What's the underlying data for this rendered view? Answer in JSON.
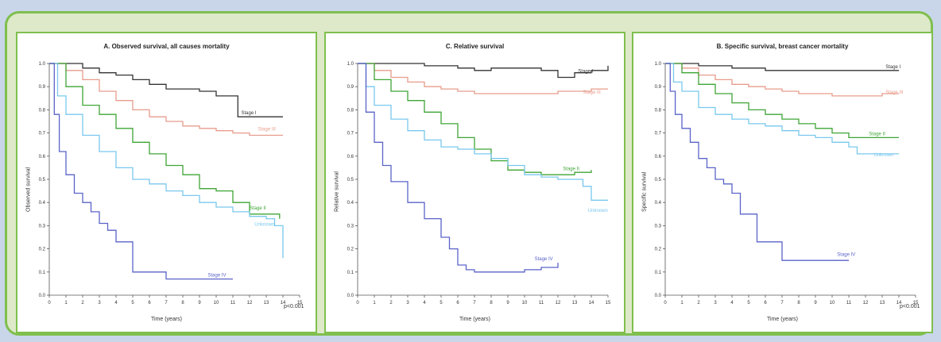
{
  "colors": {
    "stage_i": "#333333",
    "stage_ii": "#3fa535",
    "stage_iii": "#e89c8c",
    "stage_iv": "#5a63c8",
    "unknown": "#79c8ee"
  },
  "chart_data": [
    {
      "type": "line",
      "title": "A. Observed survival, all causes mortality",
      "xlabel": "Time (years)",
      "ylabel": "Observed survival",
      "xlim": [
        0,
        15
      ],
      "ylim": [
        0,
        1
      ],
      "xticks": [
        "0",
        "1",
        "2",
        "3",
        "4",
        "5",
        "6",
        "7",
        "8",
        "9",
        "10",
        "11",
        "12",
        "13",
        "14",
        "15"
      ],
      "yticks": [
        "0.0",
        "0.1",
        "0.2",
        "0.3",
        "0.4",
        "0.5",
        "0.6",
        "0.7",
        "0.8",
        "0.9",
        "1.0"
      ],
      "annotation": "p<0.001",
      "series": [
        {
          "name": "Stage I",
          "color_key": "stage_i",
          "label_at": [
            11.5,
            0.78
          ],
          "x": [
            0,
            1,
            2,
            3,
            4,
            5,
            6,
            7,
            8,
            9,
            10,
            11,
            11.3,
            12,
            13,
            14
          ],
          "y": [
            1.0,
            1.0,
            0.98,
            0.96,
            0.95,
            0.93,
            0.91,
            0.89,
            0.89,
            0.88,
            0.86,
            0.86,
            0.77,
            0.77,
            0.77,
            0.77
          ]
        },
        {
          "name": "Stage III",
          "color_key": "stage_iii",
          "label_at": [
            12.5,
            0.71
          ],
          "x": [
            0,
            1,
            2,
            3,
            4,
            5,
            6,
            7,
            8,
            9,
            10,
            11,
            12,
            13,
            14
          ],
          "y": [
            1.0,
            0.97,
            0.93,
            0.88,
            0.84,
            0.8,
            0.77,
            0.75,
            0.73,
            0.72,
            0.71,
            0.7,
            0.69,
            0.69,
            0.69
          ]
        },
        {
          "name": "Stage II",
          "color_key": "stage_ii",
          "label_at": [
            12,
            0.37
          ],
          "x": [
            0,
            1,
            2,
            3,
            4,
            5,
            6,
            7,
            8,
            9,
            10,
            11,
            12,
            13,
            13.8
          ],
          "y": [
            1.0,
            0.9,
            0.82,
            0.78,
            0.72,
            0.66,
            0.61,
            0.56,
            0.52,
            0.46,
            0.45,
            0.4,
            0.35,
            0.35,
            0.33
          ]
        },
        {
          "name": "Unknown",
          "color_key": "unknown",
          "label_at": [
            12.3,
            0.3
          ],
          "x": [
            0,
            0.5,
            1,
            2,
            3,
            4,
            5,
            6,
            7,
            8,
            9,
            10,
            11,
            12,
            13,
            13.5,
            14
          ],
          "y": [
            1.0,
            0.86,
            0.78,
            0.69,
            0.62,
            0.55,
            0.5,
            0.48,
            0.45,
            0.43,
            0.4,
            0.38,
            0.36,
            0.34,
            0.33,
            0.3,
            0.16
          ]
        },
        {
          "name": "Stage IV",
          "color_key": "stage_iv",
          "label_at": [
            9.5,
            0.08
          ],
          "x": [
            0,
            0.3,
            0.6,
            1,
            1.5,
            2,
            2.5,
            3,
            3.5,
            4,
            4.5,
            5,
            5.5,
            6,
            7,
            8,
            9,
            10,
            11
          ],
          "y": [
            1.0,
            0.78,
            0.62,
            0.52,
            0.44,
            0.4,
            0.36,
            0.31,
            0.28,
            0.23,
            0.23,
            0.1,
            0.1,
            0.1,
            0.07,
            0.07,
            0.07,
            0.07,
            0.07
          ]
        }
      ]
    },
    {
      "type": "line",
      "title": "C. Relative survival",
      "xlabel": "Time (years)",
      "ylabel": "Relative survival",
      "xlim": [
        0,
        15
      ],
      "ylim": [
        0,
        1
      ],
      "xticks": [
        "0",
        "1",
        "2",
        "3",
        "4",
        "5",
        "6",
        "7",
        "8",
        "9",
        "10",
        "11",
        "12",
        "13",
        "14",
        "15"
      ],
      "yticks": [
        "0.0",
        "0.1",
        "0.2",
        "0.3",
        "0.4",
        "0.5",
        "0.6",
        "0.7",
        "0.8",
        "0.9",
        "1.0"
      ],
      "annotation": "",
      "series": [
        {
          "name": "Stage I",
          "color_key": "stage_i",
          "label_at": [
            13.2,
            0.96
          ],
          "x": [
            0,
            2,
            4,
            6,
            7,
            8,
            10,
            11,
            12,
            13,
            14,
            15
          ],
          "y": [
            1.0,
            1.0,
            0.99,
            0.98,
            0.97,
            0.98,
            0.98,
            0.97,
            0.94,
            0.96,
            0.97,
            0.99
          ]
        },
        {
          "name": "Stage III",
          "color_key": "stage_iii",
          "label_at": [
            13.5,
            0.87
          ],
          "x": [
            0,
            1,
            2,
            3,
            4,
            5,
            6,
            7,
            8,
            9,
            10,
            11,
            12,
            13,
            14,
            15
          ],
          "y": [
            1.0,
            0.97,
            0.94,
            0.92,
            0.9,
            0.89,
            0.88,
            0.87,
            0.87,
            0.87,
            0.87,
            0.87,
            0.88,
            0.88,
            0.89,
            0.89
          ]
        },
        {
          "name": "Stage II",
          "color_key": "stage_ii",
          "label_at": [
            12.3,
            0.54
          ],
          "x": [
            0,
            1,
            2,
            3,
            4,
            5,
            6,
            7,
            8,
            9,
            10,
            11,
            12,
            13,
            14
          ],
          "y": [
            1.0,
            0.93,
            0.88,
            0.84,
            0.79,
            0.74,
            0.68,
            0.63,
            0.58,
            0.54,
            0.53,
            0.52,
            0.52,
            0.53,
            0.54
          ]
        },
        {
          "name": "Unknown",
          "color_key": "unknown",
          "label_at": [
            13.8,
            0.36
          ],
          "x": [
            0,
            0.5,
            1,
            2,
            3,
            4,
            5,
            6,
            7,
            8,
            9,
            10,
            11,
            12,
            13,
            13.5,
            14,
            15
          ],
          "y": [
            1.0,
            0.9,
            0.82,
            0.76,
            0.71,
            0.67,
            0.64,
            0.63,
            0.61,
            0.59,
            0.56,
            0.52,
            0.51,
            0.5,
            0.5,
            0.47,
            0.41,
            0.41
          ]
        },
        {
          "name": "Stage IV",
          "color_key": "stage_iv",
          "label_at": [
            10.6,
            0.15
          ],
          "x": [
            0,
            0.5,
            1,
            1.5,
            2,
            3,
            4,
            5,
            5.5,
            6,
            6.5,
            7,
            8,
            9,
            10,
            11,
            12
          ],
          "y": [
            1.0,
            0.79,
            0.66,
            0.56,
            0.49,
            0.4,
            0.33,
            0.25,
            0.2,
            0.13,
            0.11,
            0.1,
            0.1,
            0.1,
            0.11,
            0.12,
            0.14
          ]
        }
      ]
    },
    {
      "type": "line",
      "title": "B. Specific survival, breast cancer mortality",
      "xlabel": "Time (years)",
      "ylabel": "Specific survival",
      "xlim": [
        0,
        15
      ],
      "ylim": [
        0,
        1
      ],
      "xticks": [
        "0",
        "1",
        "2",
        "3",
        "4",
        "5",
        "6",
        "7",
        "8",
        "9",
        "10",
        "11",
        "12",
        "13",
        "14",
        "15"
      ],
      "yticks": [
        "0.0",
        "0.1",
        "0.2",
        "0.3",
        "0.4",
        "0.5",
        "0.6",
        "0.7",
        "0.8",
        "0.9",
        "1.0"
      ],
      "annotation": "p<0.001",
      "series": [
        {
          "name": "Stage I",
          "color_key": "stage_i",
          "label_at": [
            13.2,
            0.98
          ],
          "x": [
            0,
            1,
            2,
            3,
            4,
            5,
            6,
            7,
            8,
            9,
            10,
            11,
            12,
            13,
            14
          ],
          "y": [
            1.0,
            1.0,
            0.99,
            0.99,
            0.98,
            0.98,
            0.97,
            0.97,
            0.97,
            0.97,
            0.97,
            0.97,
            0.97,
            0.97,
            0.97
          ]
        },
        {
          "name": "Stage III",
          "color_key": "stage_iii",
          "label_at": [
            13.2,
            0.87
          ],
          "x": [
            0,
            1,
            2,
            3,
            4,
            5,
            6,
            7,
            8,
            9,
            10,
            11,
            12,
            13,
            14
          ],
          "y": [
            1.0,
            0.98,
            0.95,
            0.93,
            0.91,
            0.9,
            0.89,
            0.88,
            0.87,
            0.87,
            0.86,
            0.86,
            0.86,
            0.87,
            0.87
          ]
        },
        {
          "name": "Stage II",
          "color_key": "stage_ii",
          "label_at": [
            12.2,
            0.69
          ],
          "x": [
            0,
            1,
            2,
            3,
            4,
            5,
            6,
            7,
            8,
            9,
            10,
            11,
            12,
            13,
            14
          ],
          "y": [
            1.0,
            0.96,
            0.91,
            0.87,
            0.83,
            0.8,
            0.78,
            0.76,
            0.74,
            0.72,
            0.7,
            0.68,
            0.68,
            0.68,
            0.68
          ]
        },
        {
          "name": "Unknown",
          "color_key": "unknown",
          "label_at": [
            12.5,
            0.6
          ],
          "x": [
            0,
            0.5,
            1,
            2,
            3,
            4,
            5,
            6,
            7,
            8,
            9,
            10,
            11,
            11.5,
            12,
            13,
            14
          ],
          "y": [
            1.0,
            0.92,
            0.88,
            0.81,
            0.78,
            0.76,
            0.74,
            0.73,
            0.71,
            0.69,
            0.68,
            0.66,
            0.64,
            0.61,
            0.61,
            0.61,
            0.61
          ]
        },
        {
          "name": "Stage IV",
          "color_key": "stage_iv",
          "label_at": [
            10.3,
            0.17
          ],
          "x": [
            0,
            0.3,
            0.6,
            1,
            1.5,
            2,
            2.5,
            3,
            3.5,
            4,
            4.5,
            5,
            5.5,
            6,
            7,
            8,
            9,
            10,
            11
          ],
          "y": [
            1.0,
            0.88,
            0.78,
            0.72,
            0.66,
            0.59,
            0.55,
            0.5,
            0.48,
            0.44,
            0.35,
            0.35,
            0.23,
            0.23,
            0.15,
            0.15,
            0.15,
            0.15,
            0.15
          ]
        }
      ]
    }
  ]
}
